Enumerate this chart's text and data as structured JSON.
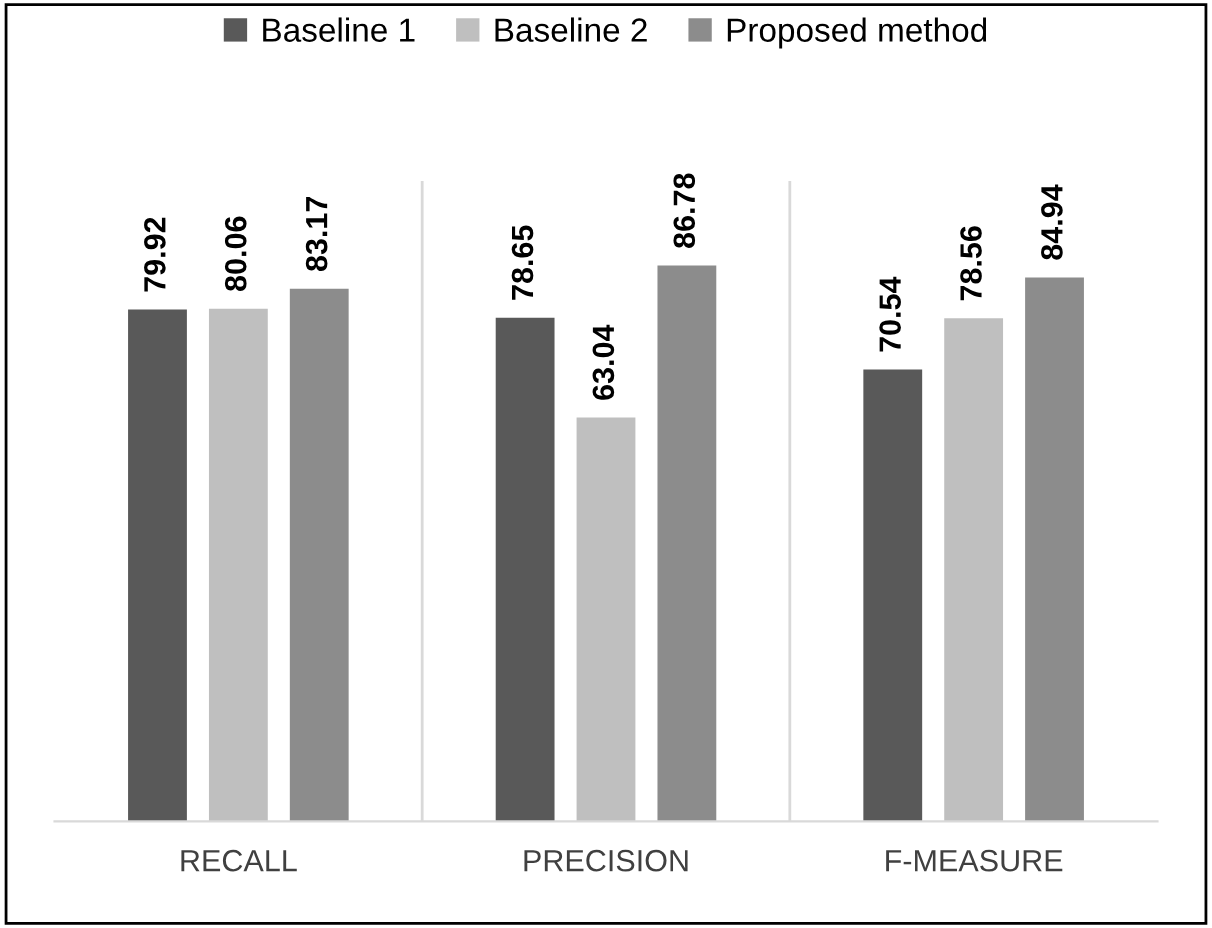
{
  "chart_data": {
    "type": "bar",
    "categories": [
      "RECALL",
      "PRECISION",
      "F-MEASURE"
    ],
    "series": [
      {
        "name": "Baseline 1",
        "color": "#595959",
        "values": [
          79.92,
          78.65,
          70.54
        ]
      },
      {
        "name": "Baseline 2",
        "color": "#bfbfbf",
        "values": [
          80.06,
          63.04,
          78.56
        ]
      },
      {
        "name": "Proposed method",
        "color": "#8c8c8c",
        "values": [
          83.17,
          86.78,
          84.94
        ]
      }
    ],
    "ylim": [
      0,
      100
    ],
    "tick_labels": "x",
    "grid": "x",
    "legend": "top",
    "data_labels": true
  }
}
